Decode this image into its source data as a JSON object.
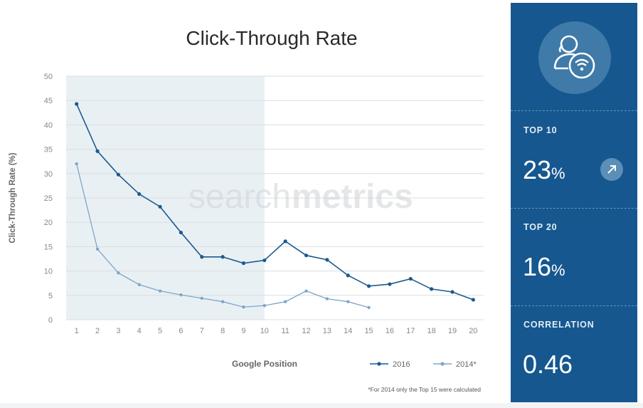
{
  "chart_data": {
    "type": "line",
    "title": "Click-Through Rate",
    "xlabel": "Google Position",
    "ylabel": "Click-Through Rate (%)",
    "x": [
      1,
      2,
      3,
      4,
      5,
      6,
      7,
      8,
      9,
      10,
      11,
      12,
      13,
      14,
      15,
      16,
      17,
      18,
      19,
      20
    ],
    "ylim": [
      0,
      50
    ],
    "yticks": [
      0,
      5,
      10,
      15,
      20,
      25,
      30,
      35,
      40,
      45,
      50
    ],
    "grid": true,
    "legend_position": "bottom-right",
    "highlight_region": [
      1,
      10
    ],
    "series": [
      {
        "name": "2016",
        "color": "#1b5a8e",
        "values": [
          44.3,
          34.6,
          29.8,
          25.8,
          23.2,
          17.9,
          12.9,
          12.9,
          11.6,
          12.2,
          16.1,
          13.2,
          12.3,
          9.1,
          6.9,
          7.3,
          8.4,
          6.3,
          5.7,
          4.1
        ]
      },
      {
        "name": "2014*",
        "color": "#7ea6c8",
        "values": [
          32,
          14.5,
          9.6,
          7.2,
          5.9,
          5.1,
          4.4,
          3.7,
          2.6,
          2.9,
          3.7,
          5.9,
          4.3,
          3.7,
          2.5,
          null,
          null,
          null,
          null,
          null
        ]
      }
    ],
    "footnote": "*For 2014 only the Top 15 were calculated",
    "watermark": "searchmetrics"
  },
  "side_panel": {
    "icon": "user-wifi-icon",
    "trend_icon": "arrow-up-right-icon",
    "stats": [
      {
        "label": "TOP 10",
        "value": "23",
        "unit": "%"
      },
      {
        "label": "TOP 20",
        "value": "16",
        "unit": "%"
      },
      {
        "label": "CORRELATION",
        "value": "0.46",
        "unit": ""
      }
    ]
  },
  "colors": {
    "panel_bg": "#16578f",
    "series_2016": "#1b5a8e",
    "series_2014": "#7ea6c8",
    "highlight_bg": "#e9f0f4",
    "grid": "#d9dde1"
  }
}
